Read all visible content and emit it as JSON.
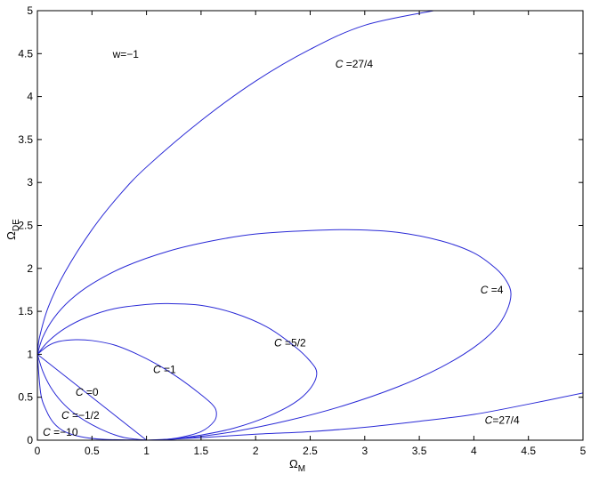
{
  "chart_data": {
    "type": "line",
    "title": "",
    "xlabel": "Ω",
    "xlabel_sub": "M",
    "ylabel": "Ω",
    "ylabel_sub": "DE",
    "xlim": [
      0,
      5
    ],
    "ylim": [
      0,
      5
    ],
    "x_ticks": [
      0,
      0.5,
      1,
      1.5,
      2,
      2.5,
      3,
      3.5,
      4,
      4.5,
      5
    ],
    "x_tick_labels": [
      "0",
      "0.5",
      "1",
      "1.5",
      "2",
      "2.5",
      "3",
      "3.5",
      "4",
      "4.5",
      "5"
    ],
    "y_ticks": [
      0,
      0.5,
      1,
      1.5,
      2,
      2.5,
      3,
      3.5,
      4,
      4.5,
      5
    ],
    "y_tick_labels": [
      "0",
      "0.5",
      "1",
      "1.5",
      "2",
      "2.5",
      "3",
      "3.5",
      "4",
      "4.5",
      "5"
    ],
    "grid": false,
    "line_color": "#2a2ad6",
    "annotation": "w=−1",
    "series": [
      {
        "name": "C=27/4 (upper)",
        "points": [
          [
            0,
            1
          ],
          [
            0.02,
            1.2
          ],
          [
            0.1,
            1.55
          ],
          [
            0.25,
            1.95
          ],
          [
            0.5,
            2.45
          ],
          [
            0.75,
            2.85
          ],
          [
            1,
            3.18
          ],
          [
            1.5,
            3.72
          ],
          [
            2,
            4.18
          ],
          [
            2.5,
            4.55
          ],
          [
            3,
            4.83
          ],
          [
            3.63,
            5.0
          ]
        ]
      },
      {
        "name": "C=27/4 (lower)",
        "points": [
          [
            1,
            0
          ],
          [
            1.5,
            0.03
          ],
          [
            2,
            0.07
          ],
          [
            2.5,
            0.1
          ],
          [
            3,
            0.15
          ],
          [
            3.5,
            0.22
          ],
          [
            4,
            0.3
          ],
          [
            4.5,
            0.42
          ],
          [
            5,
            0.55
          ]
        ]
      },
      {
        "name": "C=4",
        "points": [
          [
            0,
            1
          ],
          [
            0.05,
            1.2
          ],
          [
            0.15,
            1.42
          ],
          [
            0.3,
            1.63
          ],
          [
            0.5,
            1.82
          ],
          [
            0.8,
            2.02
          ],
          [
            1.2,
            2.2
          ],
          [
            1.6,
            2.32
          ],
          [
            2,
            2.4
          ],
          [
            2.5,
            2.44
          ],
          [
            2.9,
            2.45
          ],
          [
            3.3,
            2.42
          ],
          [
            3.7,
            2.32
          ],
          [
            4.0,
            2.18
          ],
          [
            4.2,
            2.0
          ],
          [
            4.3,
            1.85
          ],
          [
            4.34,
            1.7
          ],
          [
            4.3,
            1.5
          ],
          [
            4.2,
            1.3
          ],
          [
            4.0,
            1.08
          ],
          [
            3.7,
            0.85
          ],
          [
            3.3,
            0.62
          ],
          [
            2.8,
            0.4
          ],
          [
            2.3,
            0.23
          ],
          [
            1.8,
            0.1
          ],
          [
            1.4,
            0.03
          ],
          [
            1.1,
            0.0
          ],
          [
            1,
            0
          ]
        ]
      },
      {
        "name": "C=5/2",
        "points": [
          [
            0,
            1
          ],
          [
            0.1,
            1.15
          ],
          [
            0.25,
            1.3
          ],
          [
            0.45,
            1.43
          ],
          [
            0.7,
            1.53
          ],
          [
            1,
            1.58
          ],
          [
            1.2,
            1.59
          ],
          [
            1.5,
            1.57
          ],
          [
            1.8,
            1.48
          ],
          [
            2.1,
            1.32
          ],
          [
            2.35,
            1.1
          ],
          [
            2.5,
            0.92
          ],
          [
            2.56,
            0.78
          ],
          [
            2.5,
            0.6
          ],
          [
            2.35,
            0.43
          ],
          [
            2.1,
            0.27
          ],
          [
            1.8,
            0.14
          ],
          [
            1.5,
            0.06
          ],
          [
            1.2,
            0.01
          ],
          [
            1,
            0
          ]
        ]
      },
      {
        "name": "C=1",
        "points": [
          [
            0,
            1
          ],
          [
            0.1,
            1.1
          ],
          [
            0.2,
            1.15
          ],
          [
            0.35,
            1.17
          ],
          [
            0.5,
            1.16
          ],
          [
            0.7,
            1.11
          ],
          [
            0.9,
            1.01
          ],
          [
            1.1,
            0.88
          ],
          [
            1.3,
            0.72
          ],
          [
            1.48,
            0.55
          ],
          [
            1.6,
            0.42
          ],
          [
            1.64,
            0.33
          ],
          [
            1.62,
            0.22
          ],
          [
            1.5,
            0.1
          ],
          [
            1.3,
            0.03
          ],
          [
            1.1,
            0.0
          ],
          [
            1,
            0
          ]
        ]
      },
      {
        "name": "C=0",
        "points": [
          [
            0,
            1
          ],
          [
            1,
            0
          ]
        ]
      },
      {
        "name": "C=-1/2",
        "points": [
          [
            0,
            1
          ],
          [
            0.05,
            0.8
          ],
          [
            0.12,
            0.62
          ],
          [
            0.22,
            0.45
          ],
          [
            0.35,
            0.3
          ],
          [
            0.5,
            0.18
          ],
          [
            0.65,
            0.09
          ],
          [
            0.8,
            0.03
          ],
          [
            1,
            0
          ]
        ]
      },
      {
        "name": "C=-10",
        "points": [
          [
            0,
            1
          ],
          [
            0.03,
            0.55
          ],
          [
            0.08,
            0.35
          ],
          [
            0.15,
            0.2
          ],
          [
            0.25,
            0.1
          ],
          [
            0.4,
            0.04
          ],
          [
            0.6,
            0.01
          ],
          [
            1,
            0
          ]
        ]
      }
    ],
    "curve_labels": [
      {
        "italic": "C",
        "rest": " =27/4",
        "x": 2.73,
        "y": 4.34
      },
      {
        "italic": "C",
        "rest": " =4",
        "x": 4.06,
        "y": 1.71
      },
      {
        "italic": "C",
        "rest": " =5/2",
        "x": 2.17,
        "y": 1.09
      },
      {
        "italic": "C",
        "rest": " =1",
        "x": 1.06,
        "y": 0.78
      },
      {
        "italic": "C",
        "rest": " =0",
        "x": 0.35,
        "y": 0.52
      },
      {
        "italic": "C",
        "rest": " =−1/2",
        "x": 0.22,
        "y": 0.25
      },
      {
        "italic": "C",
        "rest": " =−10",
        "x": 0.05,
        "y": 0.05
      },
      {
        "italic": "C",
        "rest": "=27/4",
        "x": 4.1,
        "y": 0.19
      }
    ],
    "annotation_pos": {
      "x": 0.69,
      "y": 4.45
    }
  }
}
